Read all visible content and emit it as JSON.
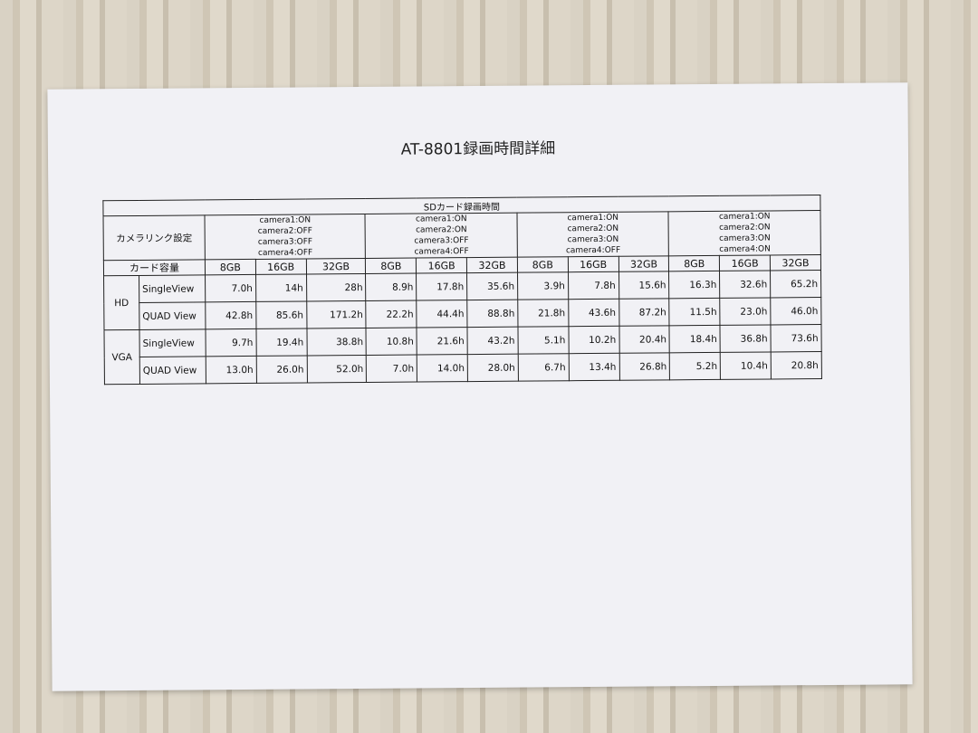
{
  "title": "AT-8801録画時間詳細",
  "table": {
    "header": "SDカード録画時間",
    "camera_link_label": "カメラリンク設定",
    "capacity_label": "カード容量",
    "groups": [
      {
        "cameras": [
          "camera1:ON",
          "camera2:OFF",
          "camera3:OFF",
          "camera4:OFF"
        ]
      },
      {
        "cameras": [
          "camera1:ON",
          "camera2:ON",
          "camera3:OFF",
          "camera4:OFF"
        ]
      },
      {
        "cameras": [
          "camera1:ON",
          "camera2:ON",
          "camera3:ON",
          "camera4:OFF"
        ]
      },
      {
        "cameras": [
          "camera1:ON",
          "camera2:ON",
          "camera3:ON",
          "camera4:ON"
        ]
      }
    ],
    "capacities": [
      "8GB",
      "16GB",
      "32GB"
    ],
    "rows": [
      {
        "resolution": "HD",
        "view": "SingleView",
        "values": [
          "7.0h",
          "14h",
          "28h",
          "8.9h",
          "17.8h",
          "35.6h",
          "3.9h",
          "7.8h",
          "15.6h",
          "16.3h",
          "32.6h",
          "65.2h"
        ]
      },
      {
        "resolution": "HD",
        "view": "QUAD View",
        "values": [
          "42.8h",
          "85.6h",
          "171.2h",
          "22.2h",
          "44.4h",
          "88.8h",
          "21.8h",
          "43.6h",
          "87.2h",
          "11.5h",
          "23.0h",
          "46.0h"
        ]
      },
      {
        "resolution": "VGA",
        "view": "SingleView",
        "values": [
          "9.7h",
          "19.4h",
          "38.8h",
          "10.8h",
          "21.6h",
          "43.2h",
          "5.1h",
          "10.2h",
          "20.4h",
          "18.4h",
          "36.8h",
          "73.6h"
        ]
      },
      {
        "resolution": "VGA",
        "view": "QUAD View",
        "values": [
          "13.0h",
          "26.0h",
          "52.0h",
          "7.0h",
          "14.0h",
          "28.0h",
          "6.7h",
          "13.4h",
          "26.8h",
          "5.2h",
          "10.4h",
          "20.8h"
        ]
      }
    ]
  }
}
